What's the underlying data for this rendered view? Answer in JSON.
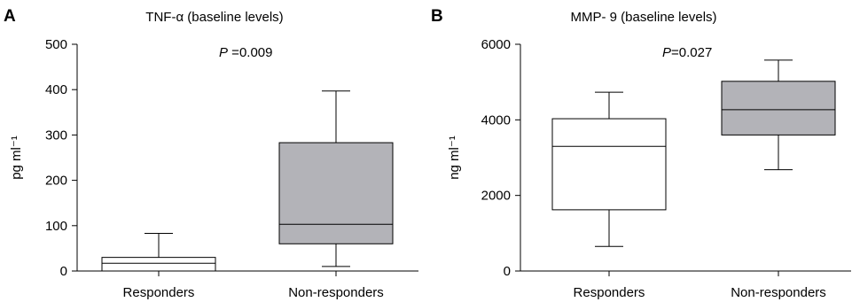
{
  "chart_data": [
    {
      "type": "box",
      "panel_label": "A",
      "title": "TNF-α (baseline levels)",
      "annotation": {
        "p_symbol": "P",
        "p_text": " =0.009"
      },
      "ylabel": "pg ml⁻¹",
      "ylim": [
        0,
        500
      ],
      "yticks": [
        0,
        100,
        200,
        300,
        400,
        500
      ],
      "categories": [
        "Responders",
        "Non-responders"
      ],
      "boxes": [
        {
          "category": "Responders",
          "min": 0,
          "q1": 0,
          "median": 17,
          "q3": 30,
          "max": 83,
          "fill": "#ffffff"
        },
        {
          "category": "Non-responders",
          "min": 10,
          "q1": 60,
          "median": 103,
          "q3": 283,
          "max": 397,
          "fill": "#b3b3b8"
        }
      ]
    },
    {
      "type": "box",
      "panel_label": "B",
      "title": "MMP- 9 (baseline levels)",
      "annotation": {
        "p_symbol": "P",
        "p_text": "=0.027"
      },
      "ylabel": "ng ml⁻¹",
      "ylim": [
        0,
        6000
      ],
      "yticks": [
        0,
        2000,
        4000,
        6000
      ],
      "categories": [
        "Responders",
        "Non-responders"
      ],
      "boxes": [
        {
          "category": "Responders",
          "min": 650,
          "q1": 1620,
          "median": 3300,
          "q3": 4030,
          "max": 4730,
          "fill": "#ffffff"
        },
        {
          "category": "Non-responders",
          "min": 2680,
          "q1": 3600,
          "median": 4270,
          "q3": 5020,
          "max": 5580,
          "fill": "#b3b3b8"
        }
      ]
    }
  ]
}
